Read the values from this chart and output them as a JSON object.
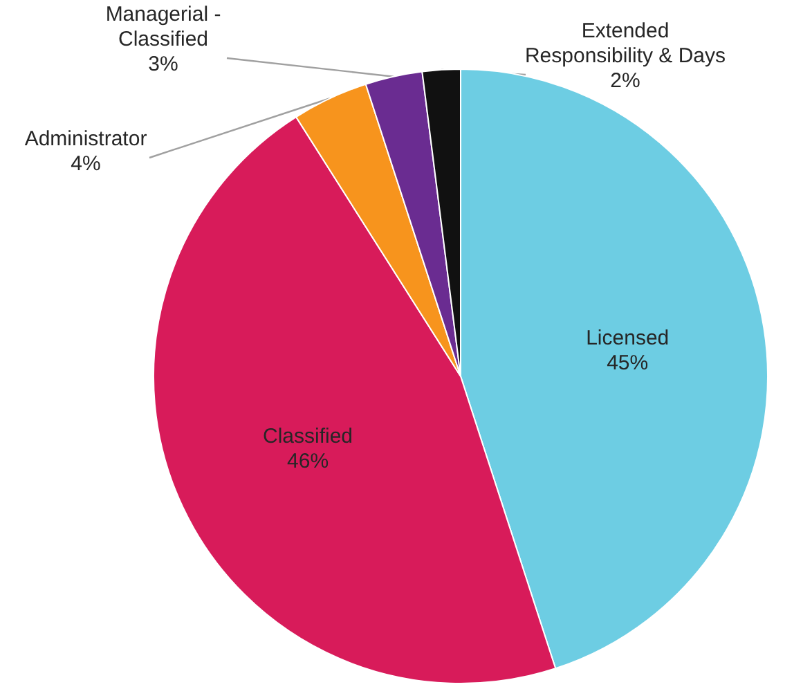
{
  "chart_data": {
    "type": "pie",
    "categories": [
      "Licensed",
      "Classified",
      "Administrator",
      "Managerial - Classified",
      "Extended Responsibility & Days"
    ],
    "values": [
      45,
      46,
      4,
      3,
      2
    ],
    "value_labels": [
      "45%",
      "46%",
      "4%",
      "3%",
      "2%"
    ],
    "colors": [
      "#6dcde3",
      "#d81b5a",
      "#f7941d",
      "#6a2c91",
      "#111111"
    ]
  }
}
